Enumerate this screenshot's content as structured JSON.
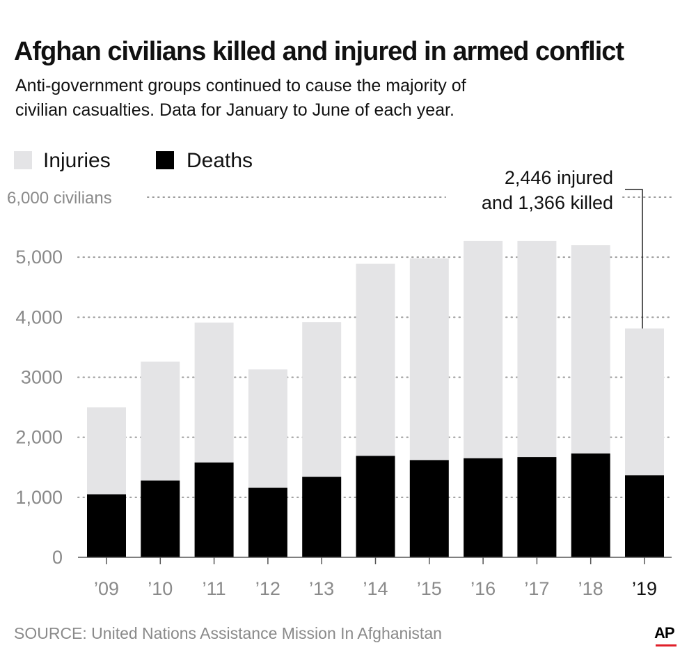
{
  "title": "Afghan civilians killed and injured in armed conflict",
  "subtitle": "Anti-government groups continued to cause the majority of civilian casualties. Data for January to June of each year.",
  "legend": {
    "injuries": "Injuries",
    "deaths": "Deaths"
  },
  "colors": {
    "injuries": "#e4e4e6",
    "deaths": "#000000",
    "axis_text": "#8a8a8a",
    "ap_red": "#e0202a"
  },
  "source": "SOURCE: United Nations Assistance Mission In Afghanistan",
  "logo": "AP",
  "chart_data": {
    "type": "bar",
    "stacked": true,
    "categories": [
      "’09",
      "’10",
      "’11",
      "’12",
      "’13",
      "’14",
      "’15",
      "’16",
      "’17",
      "’18",
      "’19"
    ],
    "series": [
      {
        "name": "Deaths",
        "values": [
          1050,
          1280,
          1580,
          1160,
          1340,
          1690,
          1620,
          1650,
          1670,
          1730,
          1366
        ]
      },
      {
        "name": "Injuries",
        "values": [
          1450,
          1980,
          2330,
          1970,
          2580,
          3200,
          3360,
          3620,
          3600,
          3470,
          2446
        ]
      }
    ],
    "ylim": [
      0,
      6000
    ],
    "yticks": [
      0,
      1000,
      2000,
      3000,
      4000,
      5000,
      6000
    ],
    "ytick_labels": [
      "0",
      "1,000",
      "2,000",
      "3000",
      "4,000",
      "5,000",
      "6,000 civilians"
    ],
    "grid": true,
    "annotation": {
      "lines": [
        "2,446 injured",
        "and 1,366 killed"
      ],
      "category": "’19"
    }
  }
}
